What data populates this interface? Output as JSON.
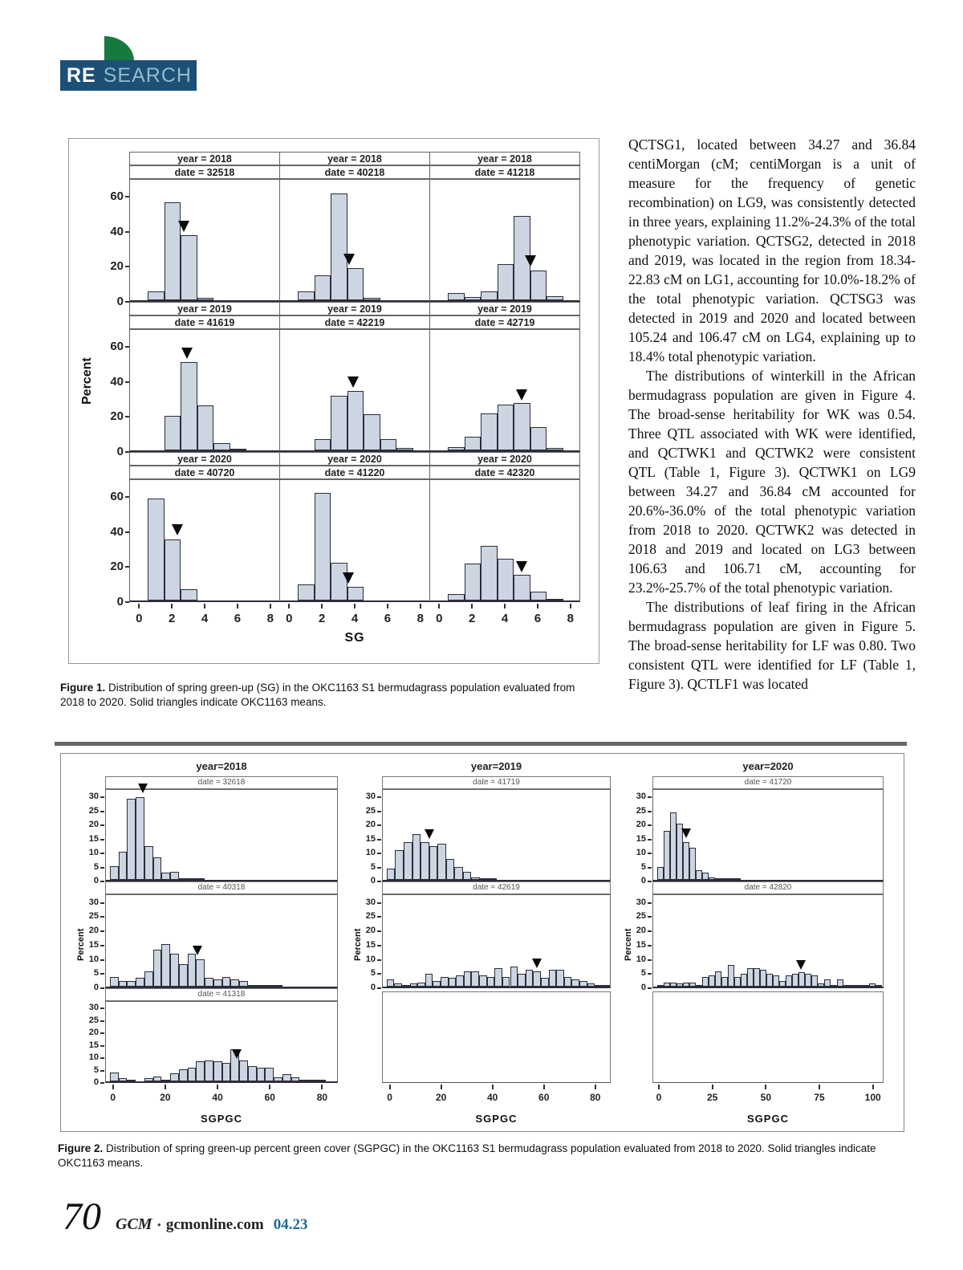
{
  "logo": {
    "re": "RE",
    "search": "SEARCH"
  },
  "article": {
    "paragraphs": [
      "QCTSG1, located between 34.27 and 36.84 centiMorgan (cM; centiMorgan is a unit of measure for the frequency of genetic recombination) on LG9, was consistently detected in three years, explaining 11.2%-24.3% of the total phenotypic variation. QCTSG2, detected in 2018 and 2019, was located in the region from 18.34-22.83 cM on LG1, accounting for 10.0%-18.2% of the total phenotypic variation. QCTSG3 was detected in 2019 and 2020 and located between 105.24 and 106.47 cM on LG4, explaining up to 18.4% total phenotypic variation.",
      "The distributions of winterkill in the African bermudagrass population are given in Figure 4. The broad-sense heritability for WK was 0.54. Three QTL associated with WK were identified, and QCTWK1 and QCTWK2 were consistent QTL (Table 1, Figure 3). QCTWK1 on LG9 between 34.27 and 36.84 cM accounted for 20.6%-36.0% of the total phenotypic variation from 2018 to 2020. QCTWK2 was detected in 2018 and 2019 and located on LG3 between 106.63 and 106.71 cM, accounting for 23.2%-25.7% of the total phenotypic variation.",
      "The distributions of leaf firing in the African bermudagrass population are given in Figure 5. The broad-sense heritability for LF was 0.80. Two consistent QTL were identified for LF (Table 1, Figure 3). QCTLF1 was located"
    ]
  },
  "figure1": {
    "caption_label": "Figure 1.",
    "caption_text": " Distribution of spring green-up (SG) in the OKC1163 S1 bermudagrass population evaluated from 2018 to 2020. Solid triangles indicate OKC1163 means."
  },
  "figure2": {
    "caption_label": "Figure 2.",
    "caption_text": " Distribution of spring green-up percent green cover (SGPGC) in the OKC1163 S1 bermudagrass population evaluated from 2018 to 2020. Solid triangles indicate OKC1163 means."
  },
  "footer": {
    "page": "70",
    "magazine": "GCM",
    "bullet": "•",
    "site": "gcmonline.com",
    "issue": "04.23"
  },
  "colors": {
    "bar_fill": "#cdd5e2",
    "bar_border": "#2b2e38",
    "logo_navy": "#1d5074",
    "logo_green": "#17793f",
    "issue_teal": "#1e6b8c"
  },
  "chart_data": [
    {
      "type": "bar",
      "title": "Distribution of spring green-up (SG), 3x3 panel histogram grid",
      "xlabel": "SG",
      "ylabel": "Percent",
      "yticks": [
        0,
        20,
        40,
        60
      ],
      "ylim": [
        0,
        70
      ],
      "xticks": [
        0,
        2,
        4,
        6,
        8
      ],
      "xlim": [
        -0.6,
        8.6
      ],
      "bin_width": 1,
      "panels": [
        {
          "year": "year = 2018",
          "date": "date = 32518",
          "bars": [
            [
              1,
              5
            ],
            [
              2,
              56
            ],
            [
              3,
              37
            ],
            [
              4,
              1.5
            ]
          ],
          "mean": [
            2.7,
            39
          ]
        },
        {
          "year": "year = 2018",
          "date": "date = 40218",
          "bars": [
            [
              1,
              5
            ],
            [
              2,
              14
            ],
            [
              3,
              61
            ],
            [
              4,
              18.5
            ],
            [
              5,
              1.5
            ]
          ],
          "mean": [
            3.6,
            20
          ]
        },
        {
          "year": "year = 2018",
          "date": "date = 41218",
          "bars": [
            [
              1,
              4
            ],
            [
              2,
              2
            ],
            [
              3,
              5
            ],
            [
              4,
              20.5
            ],
            [
              5,
              48
            ],
            [
              6,
              17
            ],
            [
              7,
              2.5
            ]
          ],
          "mean": [
            5.5,
            19
          ]
        },
        {
          "year": "year = 2019",
          "date": "date = 41619",
          "bars": [
            [
              2,
              19.5
            ],
            [
              3,
              50.5
            ],
            [
              4,
              25.5
            ],
            [
              5,
              4
            ],
            [
              6,
              0.7
            ]
          ],
          "mean": [
            2.85,
            52
          ]
        },
        {
          "year": "year = 2019",
          "date": "date = 42219",
          "bars": [
            [
              2,
              6.5
            ],
            [
              3,
              31
            ],
            [
              4,
              34
            ],
            [
              5,
              20.5
            ],
            [
              6,
              6.5
            ],
            [
              7,
              1.5
            ]
          ],
          "mean": [
            3.85,
            35.5
          ]
        },
        {
          "year": "year = 2019",
          "date": "date = 42719",
          "bars": [
            [
              1,
              2
            ],
            [
              2,
              8
            ],
            [
              3,
              21
            ],
            [
              4,
              26
            ],
            [
              5,
              27
            ],
            [
              6,
              13.5
            ],
            [
              7,
              1.5
            ]
          ],
          "mean": [
            5.0,
            28.5
          ]
        },
        {
          "year": "year = 2020",
          "date": "date = 40720",
          "bars": [
            [
              1,
              58
            ],
            [
              2,
              35
            ],
            [
              3,
              6.5
            ]
          ],
          "mean": [
            2.3,
            37
          ]
        },
        {
          "year": "year = 2020",
          "date": "date = 41220",
          "bars": [
            [
              1,
              9
            ],
            [
              2,
              61.5
            ],
            [
              3,
              21.5
            ],
            [
              4,
              8
            ]
          ],
          "mean": [
            3.55,
            9.5
          ]
        },
        {
          "year": "year = 2020",
          "date": "date = 42320",
          "bars": [
            [
              1,
              3.5
            ],
            [
              2,
              21
            ],
            [
              3,
              31
            ],
            [
              4,
              24
            ],
            [
              5,
              14.5
            ],
            [
              6,
              5
            ],
            [
              7,
              0.7
            ]
          ],
          "mean": [
            5.0,
            16
          ]
        }
      ]
    },
    {
      "type": "bar",
      "title": "Distribution of spring green-up percent green cover (SGPGC), paneled histograms by year and date",
      "xlabel": "SGPGC",
      "ylabel": "Percent",
      "yticks": [
        0,
        5,
        10,
        15,
        20,
        25,
        30
      ],
      "ylim": [
        0,
        33
      ],
      "columns": [
        {
          "year": "year=2018",
          "xticks": [
            0,
            20,
            40,
            60,
            80
          ],
          "xlim": [
            -3,
            86
          ],
          "panels": [
            {
              "date": "date = 32618",
              "x0": -1.5,
              "binw": 3.3,
              "heights": [
                5,
                10,
                29,
                29.5,
                12,
                8,
                2.5,
                3,
                0.5,
                0.3,
                0.3
              ],
              "mean": [
                11,
                31
              ]
            },
            {
              "date": "date = 40318",
              "x0": -1.5,
              "binw": 3.3,
              "heights": [
                3.5,
                2,
                2,
                3,
                5.5,
                13,
                15,
                11.5,
                8,
                11.5,
                9.5,
                3,
                2.5,
                3.5,
                2.5,
                2,
                0.5,
                0.4,
                0.3,
                0.3
              ],
              "mean": [
                32,
                11
              ]
            },
            {
              "date": "date = 41318",
              "x0": -1.5,
              "binw": 3.3,
              "heights": [
                3.5,
                1.2,
                0.3,
                0,
                1.2,
                1.8,
                0.3,
                3.2,
                5,
                5.5,
                8,
                8.5,
                8,
                7.5,
                13,
                8.5,
                6,
                5.5,
                5.5,
                1.5,
                3,
                1.5,
                0.5,
                0.5,
                0.3
              ],
              "mean": [
                47,
                9
              ]
            }
          ]
        },
        {
          "year": "year=2019",
          "xticks": [
            0,
            20,
            40,
            60,
            80
          ],
          "xlim": [
            -3,
            86
          ],
          "panels": [
            {
              "date": "date = 41719",
              "x0": -1.5,
              "binw": 3.3,
              "heights": [
                4,
                10.5,
                13.5,
                16.5,
                13.5,
                12,
                13,
                7.5,
                4.5,
                3,
                1,
                0.3,
                0.5
              ],
              "mean": [
                15,
                14.5
              ]
            },
            {
              "date": "date = 42619",
              "x0": -1.5,
              "binw": 3.0,
              "heights": [
                2.5,
                1,
                0.5,
                1,
                1.5,
                4.5,
                2,
                3.5,
                3,
                4,
                5.5,
                5.5,
                4,
                3.5,
                6.5,
                3.5,
                7,
                4.5,
                6,
                5.5,
                3,
                6,
                6,
                3.5,
                2.5,
                2,
                1,
                0.3,
                0.5
              ],
              "mean": [
                57,
                6.5
              ]
            },
            {
              "empty": true
            }
          ]
        },
        {
          "year": "year=2020",
          "xticks": [
            0,
            25,
            50,
            75,
            100
          ],
          "xlim": [
            -3,
            105
          ],
          "panels": [
            {
              "date": "date = 41720",
              "x0": -1,
              "binw": 3.0,
              "heights": [
                4.5,
                17.5,
                24,
                20,
                13.5,
                11.5,
                3.5,
                2.5,
                1,
                0.7,
                0.7,
                0.3,
                0.3
              ],
              "mean": [
                12.5,
                15
              ]
            },
            {
              "date": "date = 42820",
              "x0": -1,
              "binw": 3.0,
              "heights": [
                0.5,
                1.5,
                1.5,
                1,
                1.5,
                1.5,
                0.3,
                3.5,
                4,
                5.5,
                3.5,
                7.5,
                3.5,
                4.5,
                6.5,
                6.5,
                6,
                4.5,
                4,
                2,
                4,
                4.5,
                5,
                4.5,
                4,
                1,
                2.5,
                0.5,
                2.5,
                0.7,
                0.5,
                0.5,
                0.5,
                1,
                0.5
              ],
              "mean": [
                66,
                6
              ]
            },
            {
              "empty": true
            }
          ]
        }
      ]
    }
  ]
}
